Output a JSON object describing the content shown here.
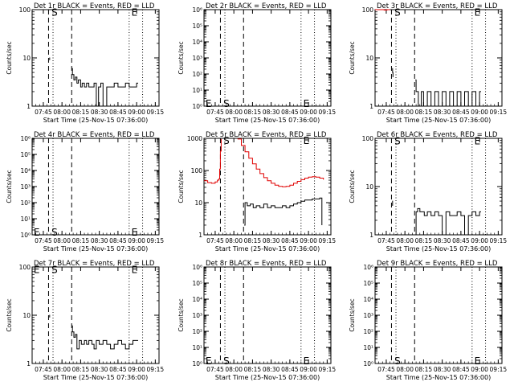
{
  "common": {
    "xtick_labels": [
      "07:45",
      "08:00",
      "08:15",
      "08:30",
      "08:45",
      "09:00",
      "09:15"
    ],
    "xtick_values": [
      0.75,
      1.0,
      1.25,
      1.5,
      1.75,
      2.0,
      2.25
    ],
    "xlabel": "Start Time (25-Nov-15 07:36:00)",
    "marker_S": "S",
    "marker_E": "E",
    "colors": {
      "events": "#000000",
      "lld": "#e00000"
    }
  },
  "chart_data": [
    {
      "id": "det1",
      "type": "line",
      "title": "Det 1r BLACK = Events, RED = LLD",
      "ylabel": "Counts/sec",
      "xlim": [
        0.6,
        2.3
      ],
      "scale": "log",
      "ylim": [
        1,
        100
      ],
      "yticks": [
        1,
        10,
        100
      ],
      "ytick_labels": [
        "1",
        "10",
        "100"
      ],
      "dashed_x": [
        0.82,
        1.13
      ],
      "dotted_x": [
        0.88,
        1.9,
        2.08
      ],
      "markers": [
        {
          "label": "S",
          "x": 0.86,
          "y": 95
        },
        {
          "label": "E",
          "x": 1.93,
          "y": 95
        }
      ],
      "series": [
        {
          "color": "events",
          "x": [
            0.83,
            0.835
          ],
          "y": [
            10,
            9
          ]
        },
        {
          "color": "events",
          "x": [
            1.13,
            1.14,
            1.16,
            1.18,
            1.2,
            1.22,
            1.25,
            1.27,
            1.3,
            1.33,
            1.36,
            1.4,
            1.43,
            1.46,
            1.49,
            1.52,
            1.55,
            1.6,
            1.65,
            1.7,
            1.75,
            1.8,
            1.85,
            1.9,
            1.95,
            2.0,
            2.02
          ],
          "y": [
            6,
            4.5,
            3.5,
            4,
            3,
            3.5,
            2.5,
            3,
            2.5,
            3,
            2.5,
            2.5,
            3,
            1,
            2.5,
            3,
            1,
            2.5,
            2.5,
            3,
            2.5,
            2.5,
            3,
            2.5,
            2.5,
            3,
            3
          ]
        }
      ]
    },
    {
      "id": "det2",
      "type": "line",
      "title": "Det 2r BLACK = Events, RED = LLD",
      "ylabel": "Counts/sec",
      "xlim": [
        0.6,
        2.3
      ],
      "scale": "log",
      "ylim": [
        1,
        1000000
      ],
      "yticks": [
        1,
        10,
        100,
        1000,
        10000,
        100000,
        1000000
      ],
      "ytick_labels": [
        "10⁰",
        "10¹",
        "10²",
        "10³",
        "10⁴",
        "10⁵",
        "10⁶"
      ],
      "dashed_x": [
        0.82,
        1.13
      ],
      "dotted_x": [
        0.88,
        1.9,
        2.08
      ],
      "markers": [
        {
          "label": "S",
          "x": 0.86,
          "y": 1.8
        },
        {
          "label": "E",
          "x": 1.93,
          "y": 1.8
        },
        {
          "label": "E",
          "x": 0.62,
          "y": 1.8
        }
      ],
      "series": []
    },
    {
      "id": "det3",
      "type": "line",
      "title": "Det 3r BLACK = Events, RED = LLD",
      "ylabel": "Counts/sec",
      "xlim": [
        0.6,
        2.3
      ],
      "scale": "log",
      "ylim": [
        1,
        100
      ],
      "yticks": [
        1,
        10,
        100
      ],
      "ytick_labels": [
        "1",
        "10",
        "100"
      ],
      "dashed_x": [
        0.82,
        1.13
      ],
      "dotted_x": [
        0.88,
        1.9,
        2.08
      ],
      "markers": [
        {
          "label": "S",
          "x": 0.86,
          "y": 95
        },
        {
          "label": "E",
          "x": 1.93,
          "y": 95
        }
      ],
      "series": [
        {
          "color": "lld",
          "x": [
            0.6,
            0.64,
            0.68,
            0.72,
            0.76,
            0.8
          ],
          "y": [
            100,
            100,
            100,
            98,
            100,
            100
          ]
        },
        {
          "color": "events",
          "x": [
            0.83,
            0.835,
            0.84
          ],
          "y": [
            6,
            5,
            4
          ]
        },
        {
          "color": "events",
          "x": [
            1.14,
            1.15,
            1.18,
            1.22,
            1.25,
            1.3,
            1.35,
            1.4,
            1.45,
            1.5,
            1.55,
            1.6,
            1.65,
            1.7,
            1.75,
            1.8,
            1.85,
            1.9,
            1.95,
            2.0,
            2.02
          ],
          "y": [
            3.5,
            2,
            1,
            2,
            1,
            2,
            1,
            2,
            1,
            2,
            1,
            2,
            1,
            2,
            1,
            2,
            1,
            2,
            1,
            2,
            2
          ]
        }
      ]
    },
    {
      "id": "det4",
      "type": "line",
      "title": "Det 4r BLACK = Events, RED = LLD",
      "ylabel": "Counts/sec",
      "xlim": [
        0.6,
        2.3
      ],
      "scale": "log",
      "ylim": [
        1,
        1000000
      ],
      "yticks": [
        1,
        10,
        100,
        1000,
        10000,
        100000,
        1000000
      ],
      "ytick_labels": [
        "10⁰",
        "10¹",
        "10²",
        "10³",
        "10⁴",
        "10⁵",
        "10⁶"
      ],
      "dashed_x": [
        0.82,
        1.13
      ],
      "dotted_x": [
        0.88,
        1.9,
        2.08
      ],
      "markers": [
        {
          "label": "S",
          "x": 0.86,
          "y": 1.8
        },
        {
          "label": "E",
          "x": 1.93,
          "y": 1.8
        },
        {
          "label": "E",
          "x": 0.62,
          "y": 1.8
        }
      ],
      "series": []
    },
    {
      "id": "det5",
      "type": "line",
      "title": "Det 5r BLACK = Events, RED = LLD",
      "ylabel": "Counts/sec",
      "xlim": [
        0.6,
        2.3
      ],
      "scale": "log",
      "ylim": [
        1,
        1000
      ],
      "yticks": [
        1,
        10,
        100,
        1000
      ],
      "ytick_labels": [
        "1",
        "10",
        "100",
        "1000"
      ],
      "dashed_x": [
        0.82,
        1.13
      ],
      "dotted_x": [
        0.88,
        1.9,
        2.08
      ],
      "markers": [
        {
          "label": "S",
          "x": 0.86,
          "y": 950
        },
        {
          "label": "E",
          "x": 1.93,
          "y": 950
        }
      ],
      "series": [
        {
          "color": "lld",
          "x": [
            0.6,
            0.65,
            0.7,
            0.75,
            0.78,
            0.8,
            0.81,
            0.82,
            0.83
          ],
          "y": [
            48,
            42,
            40,
            44,
            50,
            55,
            110,
            400,
            950
          ]
        },
        {
          "color": "lld",
          "x": [
            1.05,
            1.1,
            1.15,
            1.2,
            1.25,
            1.3,
            1.35,
            1.4,
            1.45,
            1.5,
            1.55,
            1.6,
            1.65,
            1.7,
            1.75,
            1.8,
            1.85,
            1.9,
            1.95,
            2.0,
            2.05,
            2.1,
            2.15,
            2.2
          ],
          "y": [
            950,
            600,
            380,
            240,
            160,
            110,
            80,
            60,
            48,
            40,
            35,
            32,
            31,
            32,
            35,
            40,
            46,
            52,
            58,
            62,
            64,
            62,
            58,
            52
          ]
        },
        {
          "color": "events",
          "x": [
            1.14,
            1.15,
            1.18,
            1.22,
            1.26,
            1.3,
            1.35,
            1.4,
            1.45,
            1.5,
            1.55,
            1.6,
            1.65,
            1.7,
            1.75,
            1.8,
            1.85,
            1.9,
            1.95,
            2.0,
            2.05,
            2.1,
            2.15,
            2.18,
            2.18
          ],
          "y": [
            2,
            10,
            8,
            9,
            7,
            8,
            7,
            9,
            7,
            8,
            7,
            7,
            8,
            7,
            8,
            9,
            10,
            11,
            12,
            12,
            13,
            13,
            14,
            14,
            2
          ]
        }
      ]
    },
    {
      "id": "det6",
      "type": "line",
      "title": "Det 6r BLACK = Events, RED = LLD",
      "ylabel": "Counts/sec",
      "xlim": [
        0.6,
        2.3
      ],
      "scale": "log",
      "ylim": [
        1,
        100
      ],
      "yticks": [
        1,
        10,
        100
      ],
      "ytick_labels": [
        "1",
        "10",
        "100"
      ],
      "dashed_x": [
        0.82,
        1.13
      ],
      "dotted_x": [
        0.88,
        1.9,
        2.08
      ],
      "markers": [
        {
          "label": "S",
          "x": 0.86,
          "y": 95
        },
        {
          "label": "E",
          "x": 1.93,
          "y": 95
        }
      ],
      "series": [
        {
          "color": "events",
          "x": [
            0.83,
            0.835
          ],
          "y": [
            5,
            4
          ]
        },
        {
          "color": "events",
          "x": [
            1.14,
            1.15,
            1.17,
            1.2,
            1.23,
            1.26,
            1.3,
            1.35,
            1.4,
            1.45,
            1.5,
            1.55,
            1.6,
            1.65,
            1.7,
            1.75,
            1.8,
            1.85,
            1.9,
            1.95,
            2.0,
            2.02
          ],
          "y": [
            1,
            3,
            3.5,
            3,
            3,
            2.5,
            3,
            2.5,
            3,
            2.5,
            1,
            3,
            2.5,
            2.5,
            3,
            2.5,
            1,
            2.5,
            3,
            2.5,
            3,
            3
          ]
        }
      ]
    },
    {
      "id": "det7",
      "type": "line",
      "title": "Det 7r BLACK = Events, RED = LLD",
      "ylabel": "Counts/sec",
      "xlim": [
        0.6,
        2.3
      ],
      "scale": "log",
      "ylim": [
        1,
        100
      ],
      "yticks": [
        1,
        10,
        100
      ],
      "ytick_labels": [
        "1",
        "10",
        "100"
      ],
      "dashed_x": [
        0.82,
        1.13
      ],
      "dotted_x": [
        0.88,
        1.9,
        2.08
      ],
      "markers": [
        {
          "label": "S",
          "x": 0.86,
          "y": 95
        },
        {
          "label": "E",
          "x": 1.93,
          "y": 95
        },
        {
          "label": "E",
          "x": 0.62,
          "y": 95
        }
      ],
      "series": [
        {
          "color": "events",
          "x": [
            0.83,
            0.835
          ],
          "y": [
            10,
            9
          ]
        },
        {
          "color": "events",
          "x": [
            1.13,
            1.14,
            1.16,
            1.18,
            1.2,
            1.23,
            1.26,
            1.3,
            1.33,
            1.36,
            1.4,
            1.43,
            1.46,
            1.5,
            1.55,
            1.6,
            1.65,
            1.7,
            1.75,
            1.8,
            1.85,
            1.9,
            1.95,
            2.0,
            2.02
          ],
          "y": [
            6,
            4.5,
            3.5,
            4,
            2,
            3,
            2.5,
            3,
            2.5,
            3,
            2.5,
            2,
            3,
            2.5,
            3,
            2.5,
            2,
            2.5,
            3,
            2.5,
            2,
            2.5,
            3,
            3,
            3
          ]
        }
      ]
    },
    {
      "id": "det8",
      "type": "line",
      "title": "Det 8r BLACK = Events, RED = LLD",
      "ylabel": "Counts/sec",
      "xlim": [
        0.6,
        2.3
      ],
      "scale": "log",
      "ylim": [
        1,
        1000000
      ],
      "yticks": [
        1,
        10,
        100,
        1000,
        10000,
        100000,
        1000000
      ],
      "ytick_labels": [
        "10⁰",
        "10¹",
        "10²",
        "10³",
        "10⁴",
        "10⁵",
        "10⁶"
      ],
      "dashed_x": [
        0.82,
        1.13
      ],
      "dotted_x": [
        0.88,
        1.9,
        2.08
      ],
      "markers": [
        {
          "label": "S",
          "x": 0.86,
          "y": 1.8
        },
        {
          "label": "E",
          "x": 1.93,
          "y": 1.8
        },
        {
          "label": "E",
          "x": 0.62,
          "y": 1.8
        }
      ],
      "series": []
    },
    {
      "id": "det9",
      "type": "line",
      "title": "Det 9r BLACK = Events, RED = LLD",
      "ylabel": "Counts/sec",
      "xlim": [
        0.6,
        2.3
      ],
      "scale": "log",
      "ylim": [
        1,
        1000000
      ],
      "yticks": [
        1,
        10,
        100,
        1000,
        10000,
        100000,
        1000000
      ],
      "ytick_labels": [
        "10⁰",
        "10¹",
        "10²",
        "10³",
        "10⁴",
        "10⁵",
        "10⁶"
      ],
      "dashed_x": [
        0.82,
        1.13
      ],
      "dotted_x": [
        0.88,
        1.9,
        2.08
      ],
      "markers": [
        {
          "label": "S",
          "x": 0.86,
          "y": 1.8
        },
        {
          "label": "E",
          "x": 1.93,
          "y": 1.8
        }
      ],
      "series": []
    }
  ]
}
